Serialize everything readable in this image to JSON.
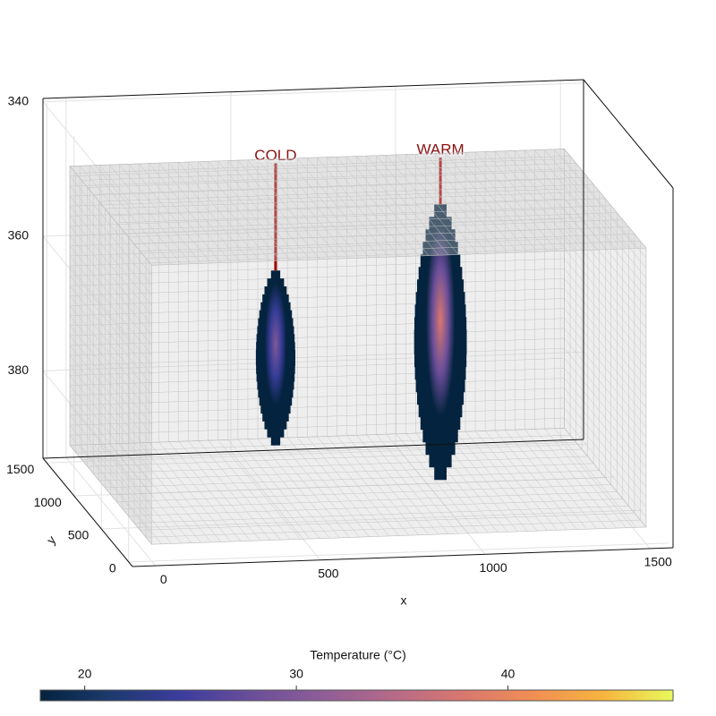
{
  "chart_data": {
    "type": "volume",
    "xlabel": "x",
    "ylabel": "y",
    "xlim": [
      -70,
      1570
    ],
    "ylim": [
      -70,
      1570
    ],
    "zlim": [
      339.5,
      393
    ],
    "zreversed": true,
    "xticks": [
      0,
      500,
      1000,
      1500
    ],
    "yticks": [
      0,
      500,
      1000,
      1500
    ],
    "zticks": [
      340,
      360,
      380
    ],
    "grid": true,
    "volume_extent": {
      "x": [
        0,
        1500
      ],
      "y": [
        0,
        1500
      ],
      "z": [
        349,
        390.5
      ]
    },
    "plumes": [
      {
        "label": "COLD",
        "x": 500,
        "y": 750,
        "z_top": 358,
        "z_bottom": 384,
        "radius": 60,
        "peak_temperature": 30,
        "annotation_z": 341
      },
      {
        "label": "WARM",
        "x": 1000,
        "y": 750,
        "z_top": 349,
        "z_bottom": 390,
        "radius": 80,
        "peak_temperature": 38,
        "annotation_z": 341
      }
    ],
    "colorbar": {
      "title": "Temperature (°C)",
      "clim": [
        17.9,
        47.8
      ],
      "ticks": [
        20,
        30,
        40
      ],
      "colormap": [
        "#04233e",
        "#1d3a6e",
        "#3c3c9e",
        "#6a4e9a",
        "#8e5d98",
        "#b56a89",
        "#d8776f",
        "#f08e54",
        "#f7b43e",
        "#e8fa5b"
      ]
    }
  }
}
